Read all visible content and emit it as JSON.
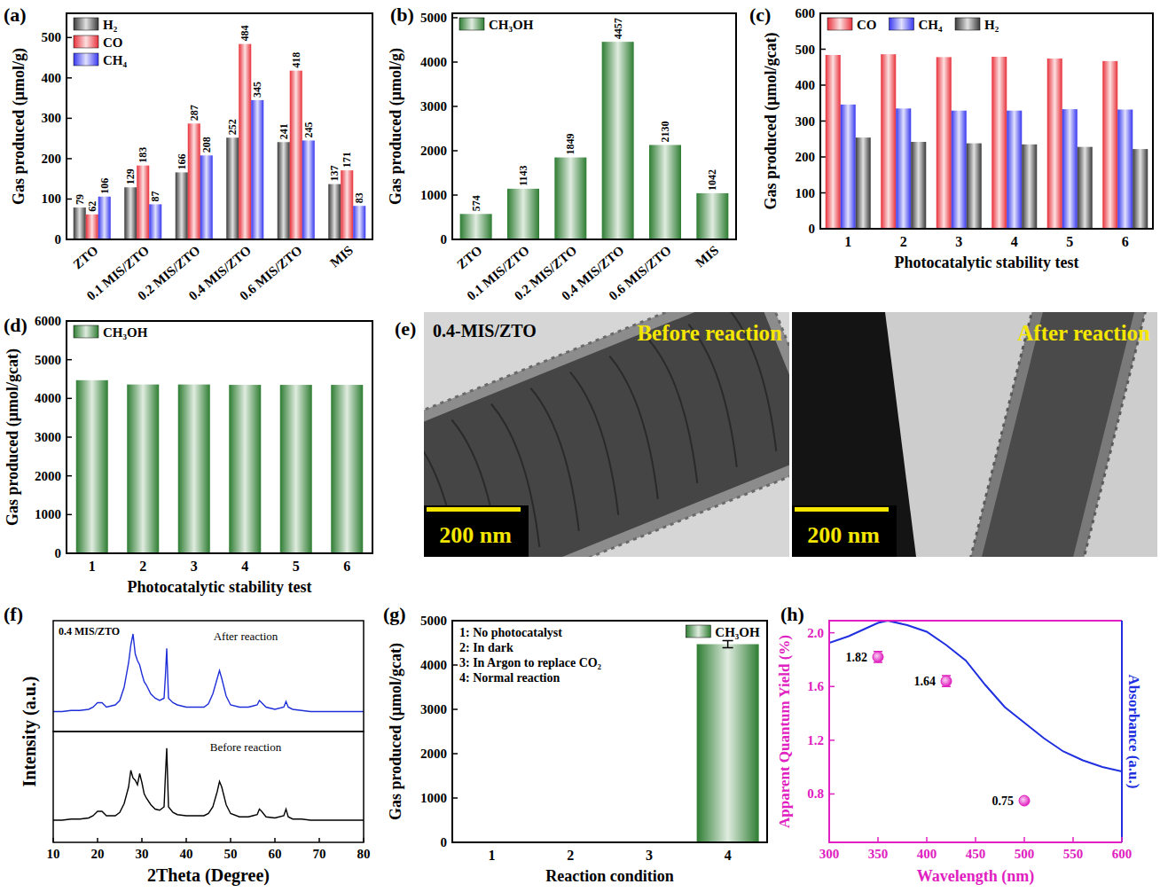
{
  "chart_data": [
    {
      "panel": "(a)",
      "type": "bar",
      "y_label": "Gas produced (μmol/g)",
      "categories": [
        "ZTO",
        "0.1 MIS/ZTO",
        "0.2 MIS/ZTO",
        "0.4 MIS/ZTO",
        "0.6 MIS/ZTO",
        "MIS"
      ],
      "series": [
        {
          "name": "H₂",
          "color": "#3a3a3a",
          "values": [
            79,
            129,
            166,
            252,
            241,
            137
          ]
        },
        {
          "name": "CO",
          "color": "#e8303a",
          "values": [
            62,
            183,
            287,
            484,
            418,
            171
          ]
        },
        {
          "name": "CH₄",
          "color": "#3838f0",
          "values": [
            106,
            87,
            208,
            345,
            245,
            83
          ]
        }
      ],
      "ylim": [
        0,
        560
      ],
      "yticks": [
        0,
        100,
        200,
        300,
        400,
        500
      ],
      "data_labels": true,
      "legend": "top-left"
    },
    {
      "panel": "(b)",
      "type": "bar",
      "y_label": "Gas produced (μmol/g)",
      "categories": [
        "ZTO",
        "0.1 MIS/ZTO",
        "0.2 MIS/ZTO",
        "0.4 MIS/ZTO",
        "0.6 MIS/ZTO",
        "MIS"
      ],
      "series": [
        {
          "name": "CH₃OH",
          "color": "#2e7d32",
          "values": [
            574,
            1143,
            1849,
            4457,
            2130,
            1042
          ]
        }
      ],
      "ylim": [
        0,
        5100
      ],
      "yticks": [
        0,
        1000,
        2000,
        3000,
        4000,
        5000
      ],
      "data_labels": true,
      "legend": "top-left"
    },
    {
      "panel": "(c)",
      "type": "bar",
      "x_label": "Photocatalytic stability test",
      "y_label": "Gas produced (μmol/gcat)",
      "categories": [
        "1",
        "2",
        "3",
        "4",
        "5",
        "6"
      ],
      "series": [
        {
          "name": "CO",
          "color": "#e8303a",
          "values": [
            484,
            486,
            478,
            479,
            474,
            467
          ]
        },
        {
          "name": "CH₄",
          "color": "#3838f0",
          "values": [
            346,
            335,
            329,
            329,
            333,
            332
          ]
        },
        {
          "name": "H₂",
          "color": "#3a3a3a",
          "values": [
            254,
            242,
            238,
            235,
            228,
            222
          ]
        }
      ],
      "ylim": [
        0,
        600
      ],
      "yticks": [
        0,
        100,
        200,
        300,
        400,
        500,
        600
      ],
      "legend": "top-left"
    },
    {
      "panel": "(d)",
      "type": "bar",
      "x_label": "Photocatalytic stability test",
      "y_label": "Gas produced (μmol/gcat)",
      "categories": [
        "1",
        "2",
        "3",
        "4",
        "5",
        "6"
      ],
      "series": [
        {
          "name": "CH₃OH",
          "color": "#2e7d32",
          "values": [
            4470,
            4360,
            4360,
            4350,
            4350,
            4350
          ]
        }
      ],
      "ylim": [
        0,
        6000
      ],
      "yticks": [
        0,
        1000,
        2000,
        3000,
        4000,
        5000,
        6000
      ],
      "legend": "top-left"
    },
    {
      "panel": "(e)",
      "type": "image",
      "title": "0.4-MIS/ZTO",
      "images": [
        {
          "label": "Before reaction",
          "scale_bar": "200 nm"
        },
        {
          "label": "After reaction",
          "scale_bar": "200 nm"
        }
      ]
    },
    {
      "panel": "(f)",
      "type": "line",
      "title": "0.4 MIS/ZTO",
      "x_label": "2Theta (Degree)",
      "y_label": "Intensity (a.u.)",
      "x": [
        10,
        12,
        14,
        16,
        18,
        19,
        20,
        21,
        22,
        24,
        25,
        26,
        27,
        27.5,
        28,
        28.5,
        29,
        29.5,
        30,
        30.5,
        31,
        32,
        33,
        34,
        35,
        35.3,
        35.6,
        36,
        37,
        38,
        40,
        42,
        44,
        45,
        46,
        47,
        47.5,
        48,
        49,
        50,
        52,
        54,
        55,
        56,
        56.5,
        57,
        58,
        60,
        62,
        62.5,
        63,
        64,
        66,
        68,
        70,
        72,
        74,
        76,
        78,
        80
      ],
      "series": [
        {
          "name": "After reaction",
          "color": "#1f2fd8",
          "values": [
            18,
            18,
            19,
            19,
            20,
            22,
            26,
            26,
            22,
            24,
            28,
            40,
            62,
            78,
            88,
            70,
            64,
            60,
            52,
            45,
            42,
            34,
            30,
            28,
            30,
            50,
            75,
            30,
            26,
            24,
            22,
            22,
            22,
            25,
            34,
            48,
            55,
            48,
            32,
            24,
            22,
            22,
            23,
            24,
            28,
            26,
            22,
            20,
            22,
            27,
            22,
            20,
            19,
            18,
            18,
            18,
            18,
            18,
            18,
            18
          ]
        },
        {
          "name": "Before reaction",
          "color": "#000000",
          "values": [
            20,
            20,
            21,
            21,
            22,
            24,
            28,
            28,
            24,
            24,
            27,
            35,
            50,
            65,
            58,
            56,
            52,
            62,
            54,
            44,
            40,
            34,
            30,
            29,
            32,
            60,
            85,
            32,
            27,
            25,
            24,
            24,
            24,
            26,
            32,
            46,
            55,
            50,
            34,
            26,
            23,
            23,
            24,
            25,
            30,
            28,
            23,
            22,
            24,
            30,
            23,
            21,
            21,
            20,
            20,
            20,
            20,
            20,
            20,
            20
          ]
        }
      ],
      "xlim": [
        10,
        80
      ],
      "xticks": [
        10,
        20,
        30,
        40,
        50,
        60,
        70,
        80
      ],
      "ylim": [
        0,
        100
      ],
      "tick_labels": "x"
    },
    {
      "panel": "(g)",
      "type": "bar",
      "x_label": "Reaction condition",
      "y_label": "Gas produced (μmol/gcat)",
      "annotations": [
        "1: No photocatalyst",
        "2: In dark",
        "3: In Argon to replace CO₂",
        "4: Normal reaction"
      ],
      "categories": [
        "1",
        "2",
        "3",
        "4"
      ],
      "series": [
        {
          "name": "CH₃OH",
          "color": "#2e7d32",
          "values": [
            0,
            0,
            0,
            4470
          ],
          "errors": [
            0,
            0,
            0,
            80
          ]
        }
      ],
      "ylim": [
        0,
        5000
      ],
      "yticks": [
        0,
        1000,
        2000,
        3000,
        4000,
        5000
      ],
      "legend": "top-right"
    },
    {
      "panel": "(h)",
      "type": "scatter",
      "x_label": "Wavelength (nm)",
      "y_label": "Apparent Quantum Yield (%)",
      "y2_label": "Absorbance (a.u.)",
      "xlim": [
        300,
        600
      ],
      "xticks": [
        300,
        350,
        400,
        450,
        500,
        550,
        600
      ],
      "ylim": [
        0.44,
        2.09
      ],
      "yticks": [
        0.8,
        1.2,
        1.6,
        {
          "value": 2,
          "label": "2.0"
        }
      ],
      "y2lim": [
        0,
        1
      ],
      "series": [
        {
          "type": "scatter",
          "color": "#e020c0",
          "x": [
            350,
            420,
            500
          ],
          "values": [
            1.82,
            1.64,
            0.75
          ],
          "errors": [
            0.04,
            0.04,
            0.02
          ],
          "data_labels": true
        },
        {
          "type": "line",
          "axis": "y2",
          "color": "#2030e0",
          "x": [
            300,
            320,
            340,
            350,
            360,
            380,
            400,
            420,
            440,
            460,
            480,
            500,
            520,
            540,
            560,
            580,
            600
          ],
          "values": [
            0.9,
            0.93,
            0.97,
            0.99,
            1.0,
            0.98,
            0.95,
            0.89,
            0.82,
            0.71,
            0.61,
            0.54,
            0.47,
            0.41,
            0.37,
            0.34,
            0.32
          ]
        }
      ]
    }
  ]
}
